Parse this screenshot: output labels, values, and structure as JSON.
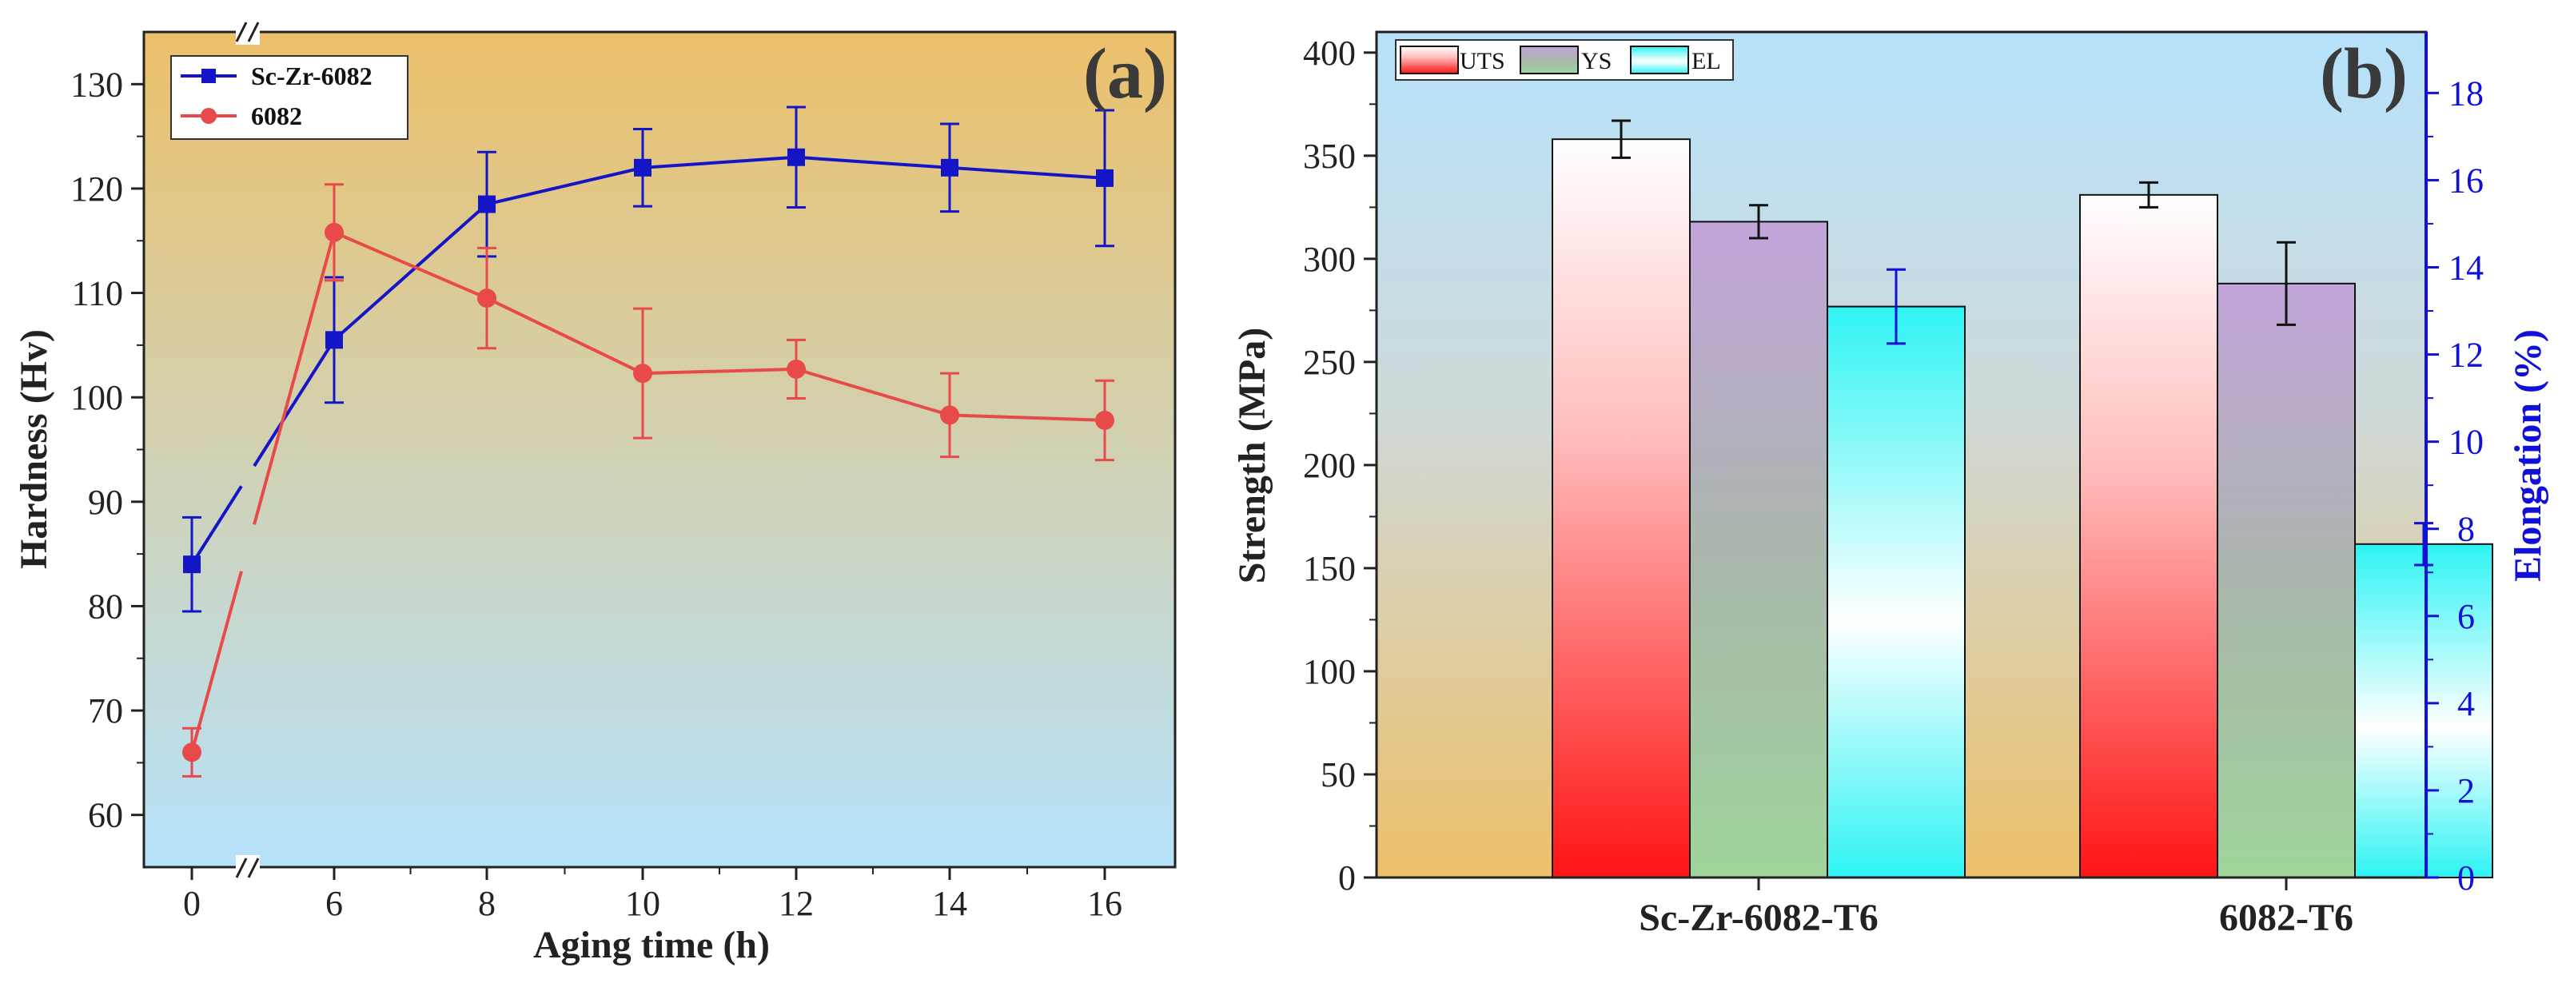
{
  "colors": {
    "sc_zr_series": "#1515c8",
    "series_6082": "#e84a4a",
    "right_axis": "#1010d8",
    "panel_a_top": "#ecc06a",
    "panel_a_bottom": "#b6e2fb",
    "panel_b_top": "#b6e2fb",
    "panel_b_bottom": "#ecc06a"
  },
  "chart_data": [
    {
      "id": "a",
      "type": "line",
      "panel_label": "(a)",
      "xlabel": "Aging time (h)",
      "ylabel": "Hardness (Hv)",
      "x_ticks": [
        0,
        6,
        8,
        10,
        12,
        14,
        16
      ],
      "x_tick_labels": [
        "0",
        "6",
        "8",
        "10",
        "12",
        "14",
        "16"
      ],
      "x_axis_break": "between 0 and 6",
      "ylim": [
        55,
        135
      ],
      "y_ticks": [
        60,
        70,
        80,
        90,
        100,
        110,
        120,
        130
      ],
      "y_tick_labels": [
        "60",
        "70",
        "80",
        "90",
        "100",
        "110",
        "120",
        "130"
      ],
      "legend_position": "top-left",
      "series": [
        {
          "name": "Sc-Zr-6082",
          "marker": "square",
          "x": [
            0,
            6,
            8,
            10,
            12,
            14,
            16
          ],
          "values": [
            84,
            105.5,
            118.5,
            122,
            123,
            122,
            121
          ],
          "errors": [
            4.5,
            6,
            5,
            3.7,
            4.8,
            4.2,
            6.5
          ]
        },
        {
          "name": "6082",
          "marker": "circle",
          "x": [
            0,
            6,
            8,
            10,
            12,
            14,
            16
          ],
          "values": [
            66,
            115.8,
            109.5,
            102.3,
            102.7,
            98.3,
            97.8
          ],
          "errors": [
            2.3,
            4.6,
            4.8,
            6.2,
            2.8,
            4,
            3.8
          ]
        }
      ]
    },
    {
      "id": "b",
      "type": "bar",
      "panel_label": "(b)",
      "categories": [
        "Sc-Zr-6082-T6",
        "6082-T6"
      ],
      "ylabel": "Strength (MPa)",
      "y2label": "Elongation (%)",
      "ylim": [
        0,
        410
      ],
      "y_ticks": [
        0,
        50,
        100,
        150,
        200,
        250,
        300,
        350,
        400
      ],
      "y_tick_labels": [
        "0",
        "50",
        "100",
        "150",
        "200",
        "250",
        "300",
        "350",
        "400"
      ],
      "y2lim": [
        0,
        19.4
      ],
      "y2_ticks": [
        0,
        2,
        4,
        6,
        8,
        10,
        12,
        14,
        16,
        18
      ],
      "y2_tick_labels": [
        "0",
        "2",
        "4",
        "6",
        "8",
        "10",
        "12",
        "14",
        "16",
        "18"
      ],
      "legend_position": "top-left",
      "series": [
        {
          "name": "UTS",
          "axis": "left",
          "values": [
            358,
            331
          ],
          "errors": [
            9,
            6
          ]
        },
        {
          "name": "YS",
          "axis": "left",
          "values": [
            318,
            288
          ],
          "errors": [
            8,
            20
          ]
        },
        {
          "name": "EL",
          "axis": "right",
          "values": [
            13.1,
            7.65
          ],
          "errors": [
            0.85,
            0.48
          ]
        }
      ]
    }
  ]
}
